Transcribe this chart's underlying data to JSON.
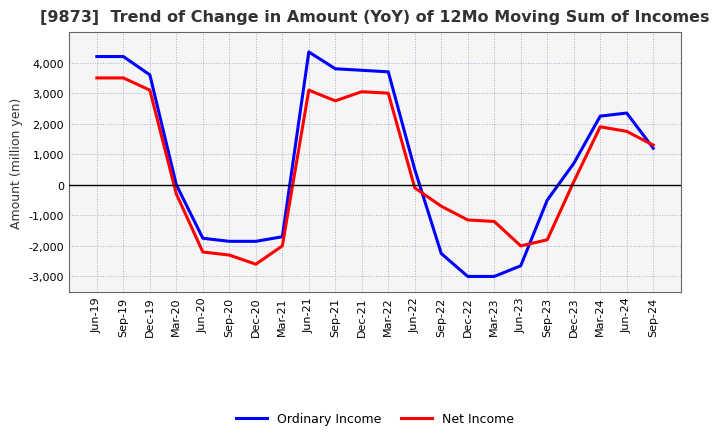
{
  "title": "[9873]  Trend of Change in Amount (YoY) of 12Mo Moving Sum of Incomes",
  "ylabel": "Amount (million yen)",
  "x_labels": [
    "Jun-19",
    "Sep-19",
    "Dec-19",
    "Mar-20",
    "Jun-20",
    "Sep-20",
    "Dec-20",
    "Mar-21",
    "Jun-21",
    "Sep-21",
    "Dec-21",
    "Mar-22",
    "Jun-22",
    "Sep-22",
    "Dec-22",
    "Mar-23",
    "Jun-23",
    "Sep-23",
    "Dec-23",
    "Mar-24",
    "Jun-24",
    "Sep-24"
  ],
  "ordinary_income": [
    4200,
    4200,
    3600,
    0,
    -1750,
    -1850,
    -1850,
    -1700,
    4350,
    3800,
    3750,
    3700,
    500,
    -2250,
    -3000,
    -3000,
    -2650,
    -500,
    700,
    2250,
    2350,
    1200
  ],
  "net_income": [
    3500,
    3500,
    3100,
    -300,
    -2200,
    -2300,
    -2600,
    -2000,
    3100,
    2750,
    3050,
    3000,
    -100,
    -700,
    -1150,
    -1200,
    -2000,
    -1800,
    100,
    1900,
    1750,
    1300
  ],
  "ordinary_income_color": "#0000ff",
  "net_income_color": "#ff0000",
  "ylim": [
    -3500,
    5000
  ],
  "yticks": [
    -3000,
    -2000,
    -1000,
    0,
    1000,
    2000,
    3000,
    4000
  ],
  "grid_color": "#aaaacc",
  "background_color": "#ffffff",
  "plot_bg_color": "#f5f5f5",
  "line_width": 2.2,
  "legend_ordinary": "Ordinary Income",
  "legend_net": "Net Income",
  "title_color": "#333333",
  "title_fontsize": 11.5,
  "ylabel_fontsize": 9,
  "tick_fontsize": 8
}
